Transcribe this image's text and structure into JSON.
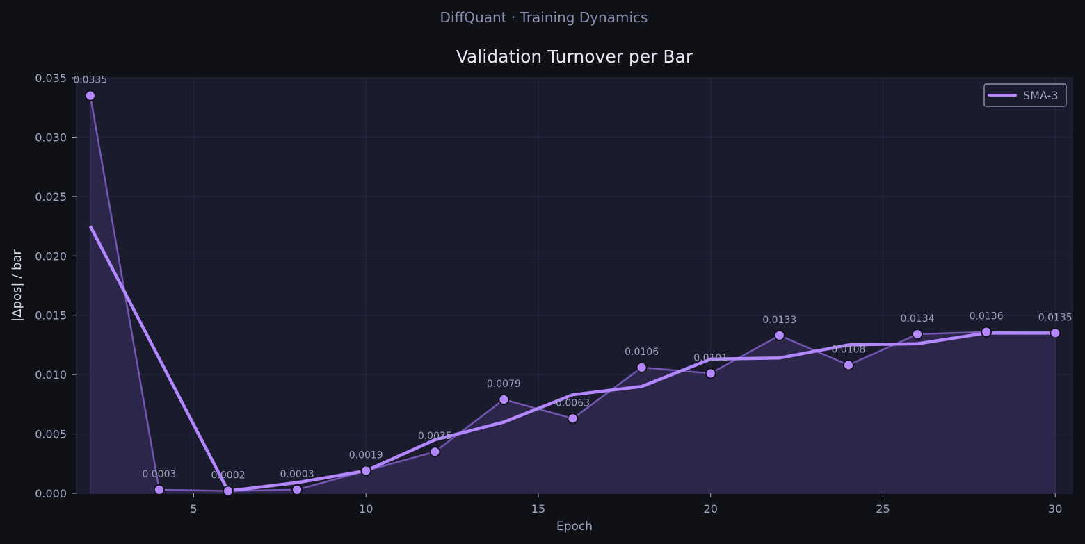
{
  "header": {
    "supertitle": "DiffQuant  ·  Training Dynamics"
  },
  "chart_data": {
    "type": "line",
    "title": "Validation Turnover per Bar",
    "xlabel": "Epoch",
    "ylabel": "|Δpos| / bar",
    "xlim": [
      1.6,
      30.5
    ],
    "ylim": [
      0.0,
      0.035
    ],
    "xticks": [
      5,
      10,
      15,
      20,
      25,
      30
    ],
    "yticks": [
      "0.000",
      "0.005",
      "0.010",
      "0.015",
      "0.020",
      "0.025",
      "0.030",
      "0.035"
    ],
    "grid": true,
    "legend_position": "top-right",
    "series": [
      {
        "role": "raw",
        "x": [
          2,
          4,
          6,
          8,
          10,
          12,
          14,
          16,
          18,
          20,
          22,
          24,
          26,
          28,
          30
        ],
        "values": [
          0.0335,
          0.0003,
          0.0002,
          0.0003,
          0.0019,
          0.0035,
          0.0079,
          0.0063,
          0.0106,
          0.0101,
          0.0133,
          0.0108,
          0.0134,
          0.0136,
          0.0135
        ],
        "labels": [
          "0.0335",
          "0.0003",
          "0.0002",
          "0.0003",
          "0.0019",
          "0.0035",
          "0.0079",
          "0.0063",
          "0.0106",
          "0.0101",
          "0.0133",
          "0.0108",
          "0.0134",
          "0.0136",
          "0.0135"
        ],
        "color": "#7c5cbf"
      },
      {
        "name": "SMA-3",
        "x": [
          2,
          6,
          8,
          10,
          12,
          14,
          16,
          18,
          20,
          22,
          24,
          26,
          28,
          30
        ],
        "values": [
          0.0225,
          0.0002,
          0.0009,
          0.0019,
          0.0045,
          0.006,
          0.0083,
          0.009,
          0.0113,
          0.0114,
          0.0125,
          0.0126,
          0.0135,
          0.0135
        ],
        "color": "#b388ff"
      }
    ],
    "colors": {
      "background": "#0f1117",
      "plot_background": "#1a1c2e",
      "fill": "#30284f",
      "marker_fill": "#b388ff"
    }
  }
}
